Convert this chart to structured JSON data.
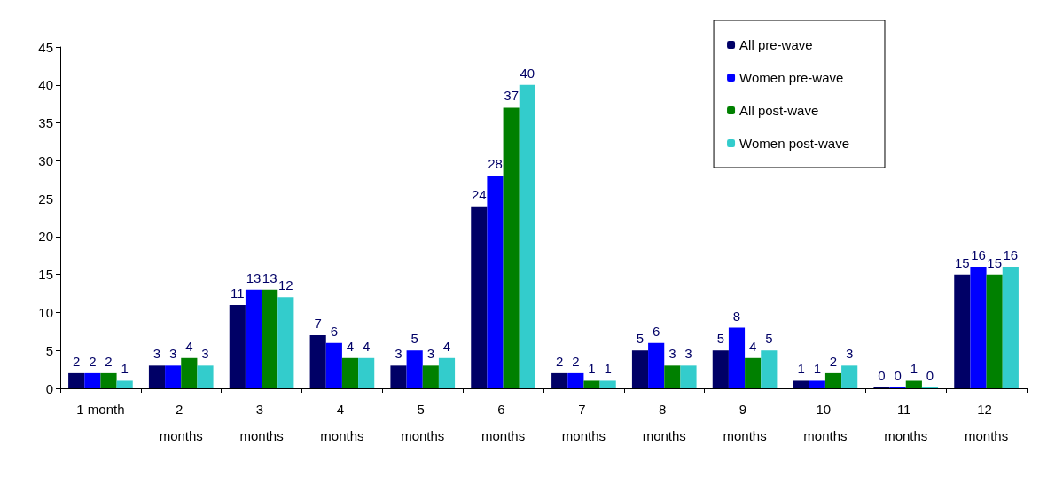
{
  "chart_data": {
    "type": "bar",
    "categories": [
      "1 month",
      "2 months",
      "3 months",
      "4 months",
      "5 months",
      "6 months",
      "7 months",
      "8 months",
      "9 months",
      "10 months",
      "11 months",
      "12 months"
    ],
    "series": [
      {
        "name": "All pre-wave",
        "color": "#000066",
        "values": [
          2,
          3,
          11,
          7,
          3,
          24,
          2,
          5,
          5,
          1,
          0,
          15
        ]
      },
      {
        "name": "Women pre-wave",
        "color": "#0000ff",
        "values": [
          2,
          3,
          13,
          6,
          5,
          28,
          2,
          6,
          8,
          1,
          0,
          16
        ]
      },
      {
        "name": "All post-wave",
        "color": "#008000",
        "values": [
          2,
          4,
          13,
          4,
          3,
          37,
          1,
          3,
          4,
          2,
          1,
          15
        ]
      },
      {
        "name": "Women post-wave",
        "color": "#33cccc",
        "values": [
          1,
          3,
          12,
          4,
          4,
          40,
          1,
          3,
          5,
          3,
          0,
          16
        ]
      }
    ],
    "ylim": [
      0,
      45
    ],
    "yticks": [
      0,
      5,
      10,
      15,
      20,
      25,
      30,
      35,
      40,
      45
    ],
    "grid": false,
    "legend": "top right",
    "data_labels": true
  }
}
